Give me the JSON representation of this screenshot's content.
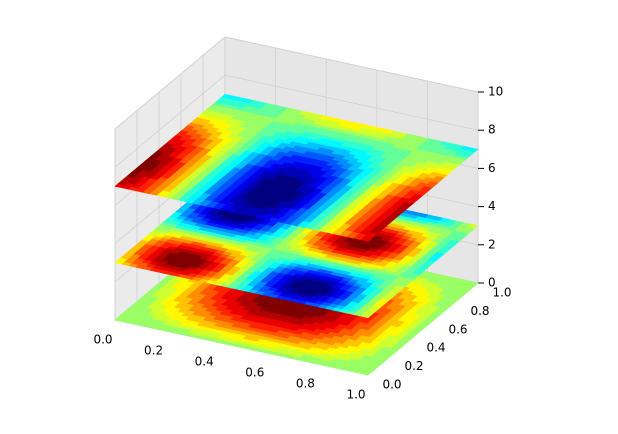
{
  "chart_data": {
    "type": "contour3d",
    "z_levels": [
      0,
      3,
      7
    ],
    "xlim": [
      0,
      1
    ],
    "ylim": [
      0,
      1
    ],
    "zlim": [
      0,
      10
    ],
    "xticks": [
      {
        "value": 0,
        "label": "0.0"
      },
      {
        "value": 0.2,
        "label": "0.2"
      },
      {
        "value": 0.4,
        "label": "0.4"
      },
      {
        "value": 0.6,
        "label": "0.6"
      },
      {
        "value": 0.8,
        "label": "0.8"
      },
      {
        "value": 1,
        "label": "1.0"
      }
    ],
    "yticks": [
      {
        "value": 0,
        "label": "0.0"
      },
      {
        "value": 0.2,
        "label": "0.2"
      },
      {
        "value": 0.4,
        "label": "0.4"
      },
      {
        "value": 0.6,
        "label": "0.6"
      },
      {
        "value": 0.8,
        "label": "0.8"
      },
      {
        "value": 1,
        "label": "1.0"
      }
    ],
    "zticks": [
      0,
      2,
      4,
      6,
      8,
      10
    ],
    "colormap": "jet",
    "grid": true
  }
}
